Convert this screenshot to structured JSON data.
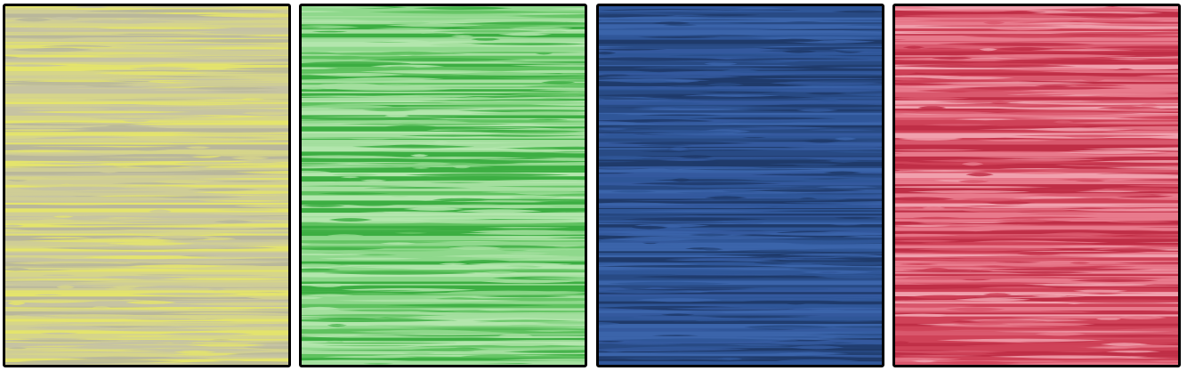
{
  "panels": [
    {
      "colors": [
        "#c6c3a2",
        "#d6d58a",
        "#e4e46c",
        "#b9b79b",
        "#cfcd96"
      ]
    },
    {
      "colors": [
        "#8fd88c",
        "#3cae42",
        "#b3e6ad",
        "#5fc25f",
        "#a4df9f"
      ]
    },
    {
      "colors": [
        "#2f5698",
        "#1f3a6a",
        "#3b64aa",
        "#284a84",
        "#34599e"
      ]
    },
    {
      "colors": [
        "#cf4258",
        "#e87a8c",
        "#bf2e46",
        "#f0a0ad",
        "#d9586d"
      ]
    }
  ]
}
